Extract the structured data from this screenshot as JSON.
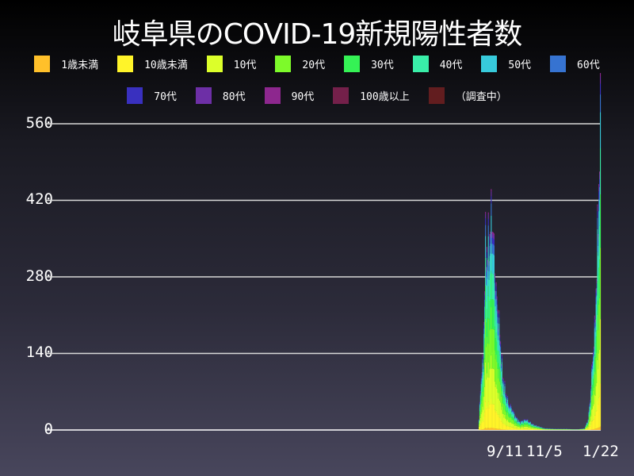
{
  "chart_data": {
    "type": "bar",
    "stacked": true,
    "title": "岐阜県のCOVID-19新規陽性者数",
    "xlabel": "",
    "ylabel": "",
    "ylim": [
      0,
      560
    ],
    "yticks": [
      0,
      140,
      280,
      420,
      560
    ],
    "ytick_labels": [
      "0",
      "140",
      "280",
      "420",
      "560"
    ],
    "xtick_labels": [
      "9/11",
      "11/5",
      "1/22"
    ],
    "xtick_dates": [
      "2021-09-11",
      "2021-11-05",
      "2022-01-22"
    ],
    "grid": true,
    "legend": "top",
    "legend_entries": [
      {
        "name": "1歳未満",
        "color": "#ffc02a"
      },
      {
        "name": "10歳未満",
        "color": "#fff429"
      },
      {
        "name": "10代",
        "color": "#dcff2a"
      },
      {
        "name": "20代",
        "color": "#7dfa2a"
      },
      {
        "name": "30代",
        "color": "#35f255"
      },
      {
        "name": "40代",
        "color": "#39eea8"
      },
      {
        "name": "50代",
        "color": "#37cadb"
      },
      {
        "name": "60代",
        "color": "#3673d1"
      },
      {
        "name": "70代",
        "color": "#3930bf"
      },
      {
        "name": "80代",
        "color": "#6d2fa6"
      },
      {
        "name": "90代",
        "color": "#8d278e"
      },
      {
        "name": "100歳以上",
        "color": "#74204a"
      },
      {
        "name": "（調査中）",
        "color": "#621d1f"
      }
    ],
    "approx_composition": [
      0.01,
      0.12,
      0.18,
      0.2,
      0.15,
      0.13,
      0.1,
      0.05,
      0.03,
      0.02,
      0.01,
      0,
      0
    ],
    "totals": [
      [
        "2021-08-05",
        20
      ],
      [
        "2021-08-08",
        100
      ],
      [
        "2021-08-11",
        130
      ],
      [
        "2021-08-14",
        340
      ],
      [
        "2021-08-17",
        330
      ],
      [
        "2021-08-20",
        360
      ],
      [
        "2021-08-23",
        400
      ],
      [
        "2021-08-26",
        330
      ],
      [
        "2021-08-29",
        250
      ],
      [
        "2021-09-01",
        210
      ],
      [
        "2021-09-04",
        160
      ],
      [
        "2021-09-07",
        100
      ],
      [
        "2021-09-11",
        70
      ],
      [
        "2021-09-15",
        50
      ],
      [
        "2021-09-20",
        40
      ],
      [
        "2021-09-25",
        25
      ],
      [
        "2021-10-01",
        15
      ],
      [
        "2021-10-10",
        20
      ],
      [
        "2021-10-20",
        10
      ],
      [
        "2021-11-05",
        3
      ],
      [
        "2021-11-20",
        2
      ],
      [
        "2021-12-05",
        2
      ],
      [
        "2021-12-20",
        1
      ],
      [
        "2021-12-31",
        3
      ],
      [
        "2022-01-05",
        20
      ],
      [
        "2022-01-08",
        60
      ],
      [
        "2022-01-11",
        130
      ],
      [
        "2022-01-14",
        180
      ],
      [
        "2022-01-17",
        300
      ],
      [
        "2022-01-20",
        450
      ],
      [
        "2022-01-22",
        560
      ]
    ]
  }
}
